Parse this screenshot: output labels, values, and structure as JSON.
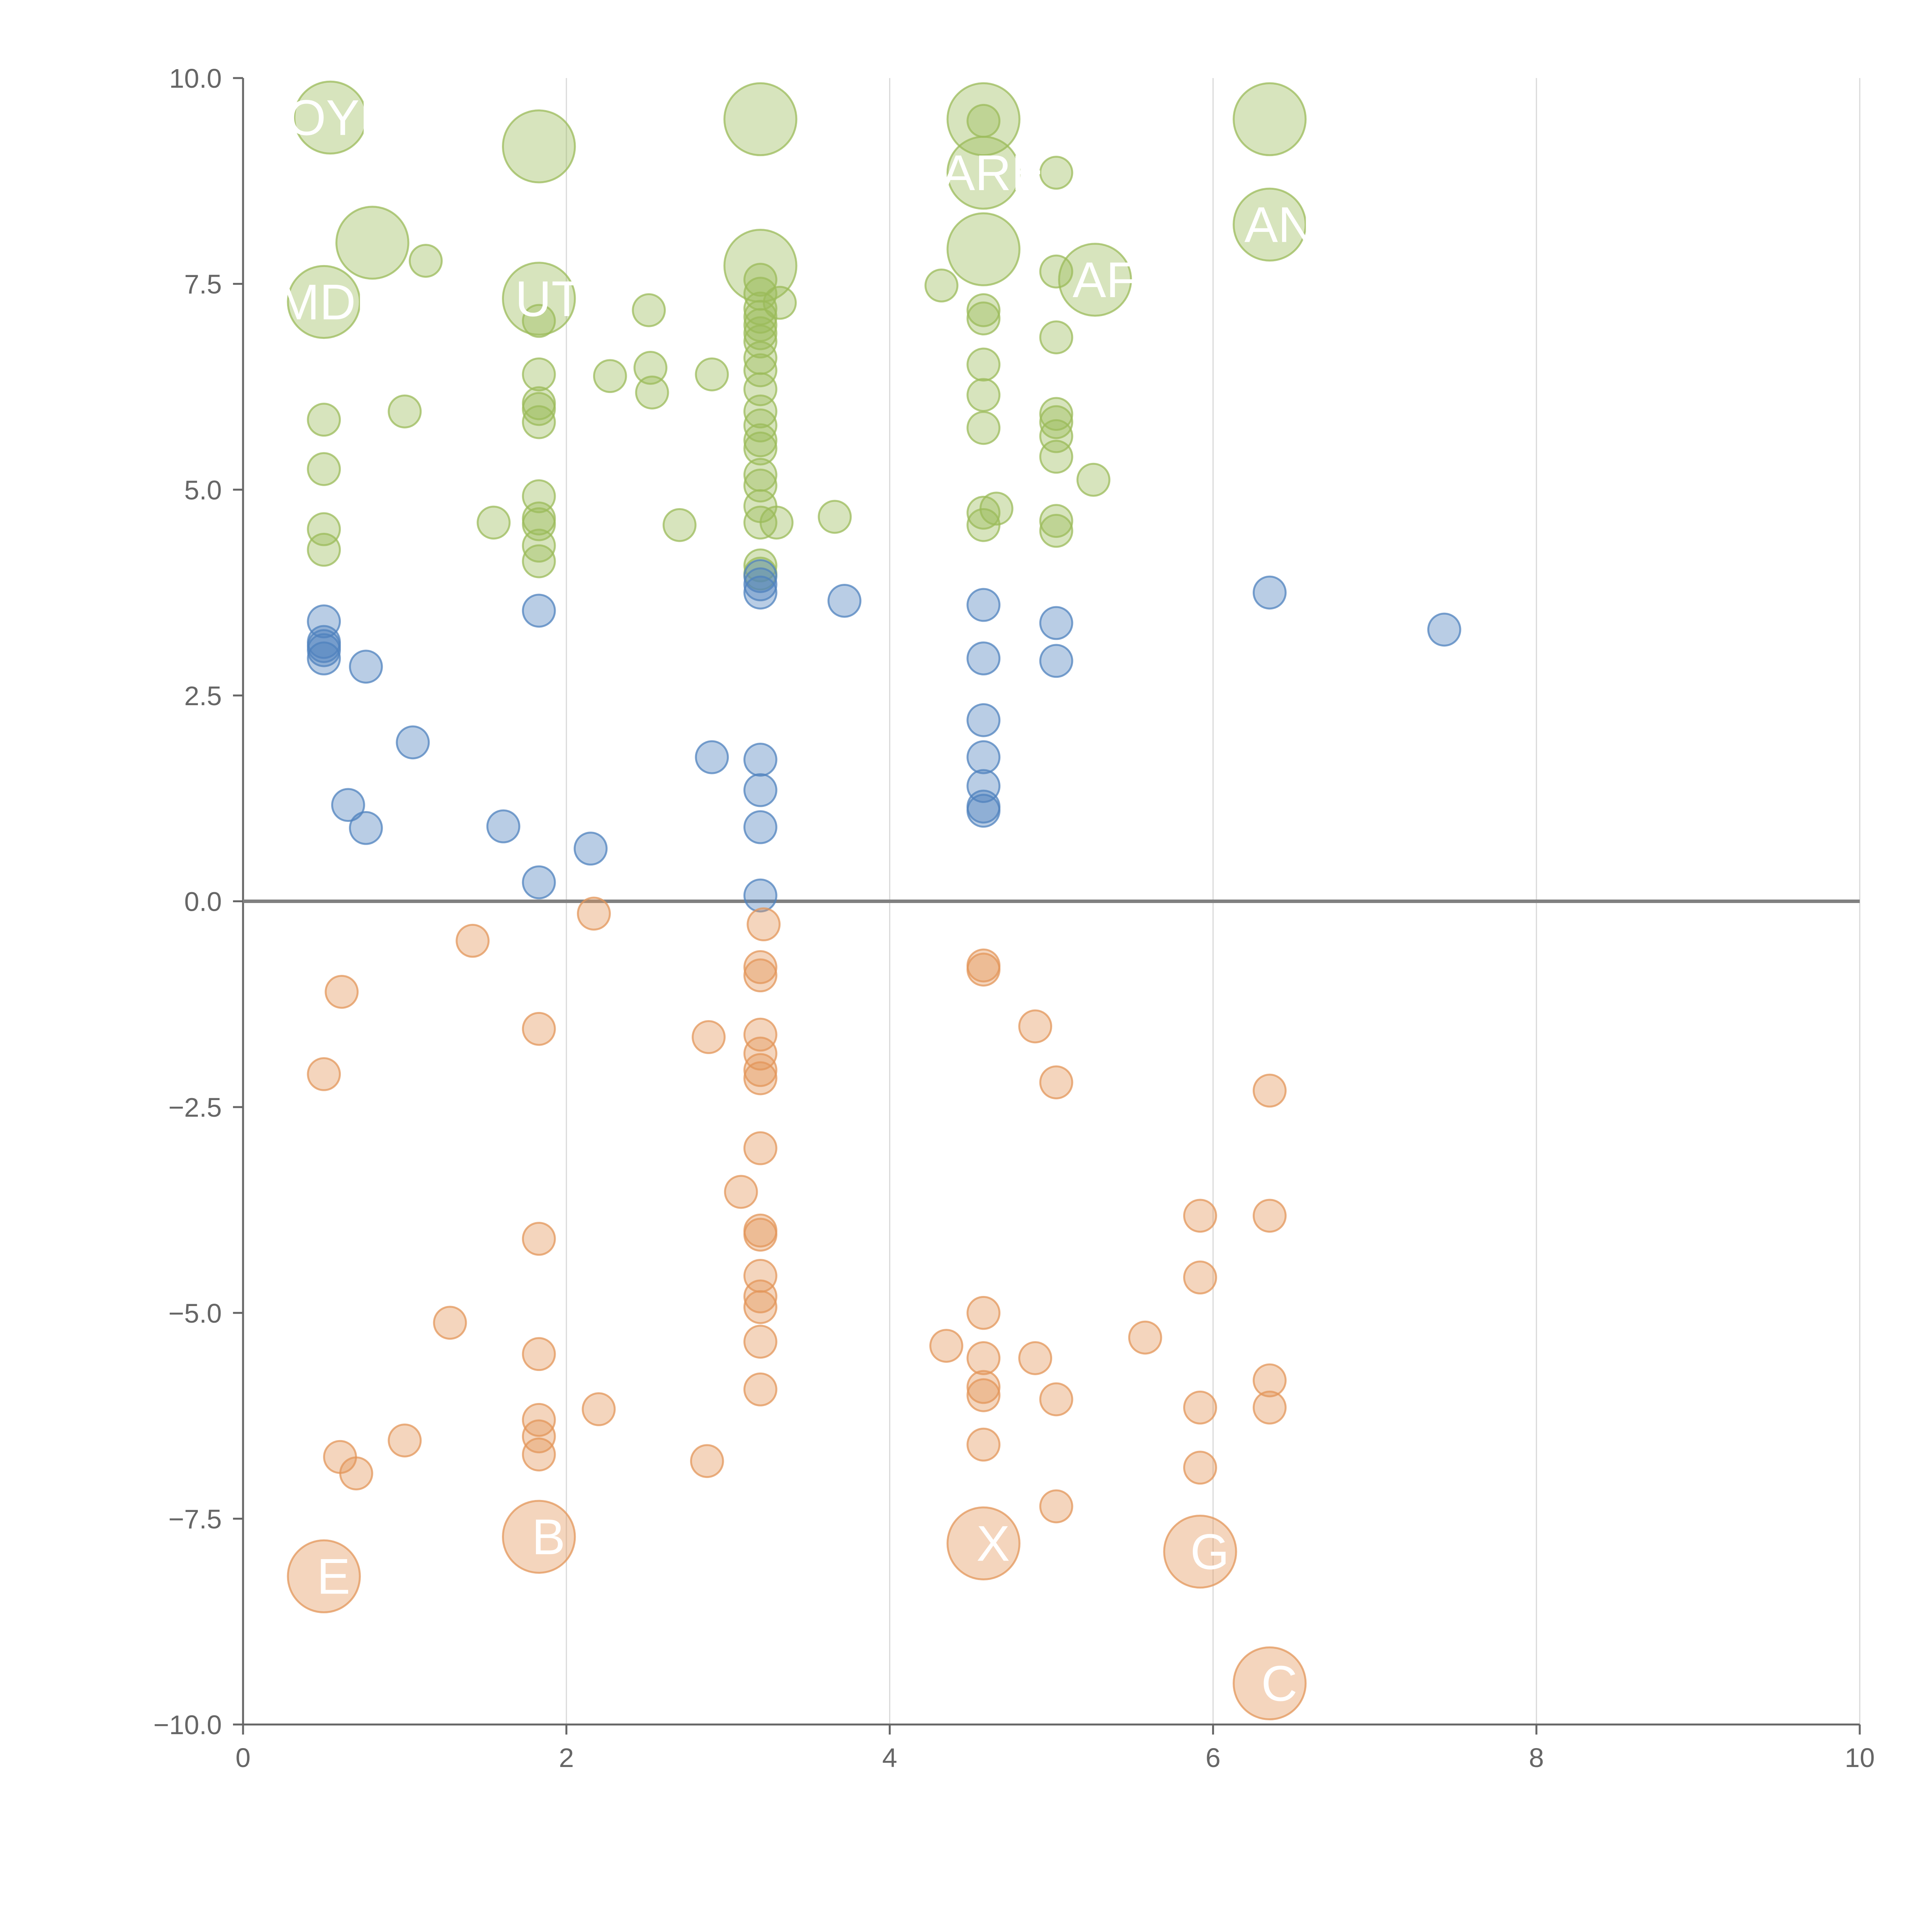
{
  "chart_data": {
    "type": "scatter",
    "title": "",
    "xlabel": "",
    "ylabel": "",
    "xlim": [
      0,
      10
    ],
    "ylim": [
      -10,
      10
    ],
    "x_ticks": [
      "0",
      "2",
      "4",
      "6",
      "8",
      "10"
    ],
    "y_ticks": [
      "10.0",
      "7.5",
      "5.0",
      "2.5",
      "0.0",
      "−2.5",
      "−5.0",
      "−7.5",
      "−10.0"
    ],
    "x_tick_values": [
      0,
      2,
      4,
      6,
      8,
      10
    ],
    "y_tick_values": [
      10,
      7.5,
      5,
      2.5,
      0,
      -2.5,
      -5,
      -7.5,
      -10
    ],
    "grid": "vertical",
    "reference_line_y": 0,
    "colors": {
      "positive_high": "#9bbb59",
      "positive_low": "#4f81bd",
      "negative": "#e3955a",
      "axis": "#666666",
      "grid": "#d9d9d9",
      "zero_line": "#808080"
    },
    "series": [
      {
        "name": "positive-high",
        "color": "#9bbb59",
        "points": [
          [
            0.5,
            5.85,
            20
          ],
          [
            0.5,
            5.25,
            20
          ],
          [
            0.5,
            4.52,
            20
          ],
          [
            0.5,
            4.27,
            20
          ],
          [
            1.0,
            5.95,
            20
          ],
          [
            1.13,
            7.78,
            20
          ],
          [
            1.55,
            4.6,
            20
          ],
          [
            1.83,
            6.4,
            20
          ],
          [
            1.83,
            6.05,
            20
          ],
          [
            1.83,
            5.98,
            20
          ],
          [
            1.83,
            5.82,
            20
          ],
          [
            1.83,
            4.92,
            20
          ],
          [
            1.83,
            4.65,
            20
          ],
          [
            1.83,
            4.58,
            20
          ],
          [
            1.83,
            4.32,
            20
          ],
          [
            1.83,
            4.13,
            20
          ],
          [
            1.83,
            7.05,
            20
          ],
          [
            2.27,
            6.38,
            20
          ],
          [
            2.51,
            7.18,
            20
          ],
          [
            2.52,
            6.48,
            20
          ],
          [
            2.53,
            6.18,
            20
          ],
          [
            2.7,
            4.57,
            20
          ],
          [
            2.9,
            6.4,
            20
          ],
          [
            3.2,
            7.55,
            20
          ],
          [
            3.2,
            7.38,
            20
          ],
          [
            3.2,
            7.2,
            20
          ],
          [
            3.2,
            7.1,
            20
          ],
          [
            3.2,
            7.0,
            20
          ],
          [
            3.2,
            6.9,
            20
          ],
          [
            3.2,
            6.8,
            20
          ],
          [
            3.2,
            6.6,
            20
          ],
          [
            3.2,
            6.45,
            20
          ],
          [
            3.2,
            6.22,
            20
          ],
          [
            3.2,
            5.95,
            20
          ],
          [
            3.2,
            5.78,
            20
          ],
          [
            3.2,
            5.6,
            20
          ],
          [
            3.2,
            5.5,
            20
          ],
          [
            3.2,
            5.18,
            20
          ],
          [
            3.2,
            5.05,
            20
          ],
          [
            3.2,
            4.8,
            20
          ],
          [
            3.2,
            4.6,
            20
          ],
          [
            3.2,
            4.08,
            20
          ],
          [
            3.2,
            3.98,
            20
          ],
          [
            3.32,
            7.27,
            20
          ],
          [
            3.3,
            4.6,
            20
          ],
          [
            3.66,
            4.67,
            20
          ],
          [
            4.32,
            7.48,
            20
          ],
          [
            4.58,
            9.48,
            20
          ],
          [
            4.58,
            7.18,
            20
          ],
          [
            4.58,
            7.08,
            20
          ],
          [
            4.58,
            6.52,
            20
          ],
          [
            4.58,
            6.15,
            20
          ],
          [
            4.58,
            5.75,
            20
          ],
          [
            4.58,
            4.72,
            20
          ],
          [
            4.58,
            4.57,
            20
          ],
          [
            4.66,
            4.77,
            20
          ],
          [
            5.03,
            8.85,
            20
          ],
          [
            5.03,
            7.65,
            20
          ],
          [
            5.03,
            6.85,
            20
          ],
          [
            5.03,
            5.92,
            20
          ],
          [
            5.03,
            5.82,
            20
          ],
          [
            5.03,
            5.65,
            20
          ],
          [
            5.03,
            5.4,
            20
          ],
          [
            5.03,
            4.62,
            20
          ],
          [
            5.03,
            4.5,
            20
          ],
          [
            5.26,
            5.12,
            20
          ],
          [
            0.54,
            9.52,
            45,
            "OYE"
          ],
          [
            0.5,
            7.28,
            45,
            "MDE"
          ],
          [
            0.8,
            8.0,
            45,
            ""
          ],
          [
            1.83,
            9.17,
            45,
            ""
          ],
          [
            1.83,
            7.32,
            45,
            "UT"
          ],
          [
            3.2,
            9.5,
            45,
            ""
          ],
          [
            3.2,
            7.72,
            45,
            ""
          ],
          [
            4.58,
            9.5,
            45,
            ""
          ],
          [
            4.58,
            8.85,
            45,
            "ARE"
          ],
          [
            4.58,
            7.92,
            45,
            ""
          ],
          [
            5.27,
            7.55,
            45,
            "AF"
          ],
          [
            6.35,
            9.5,
            45,
            ""
          ],
          [
            6.35,
            8.22,
            45,
            "AN"
          ]
        ]
      },
      {
        "name": "positive-low",
        "color": "#4f81bd",
        "points": [
          [
            0.5,
            3.4,
            20
          ],
          [
            0.5,
            3.15,
            20
          ],
          [
            0.5,
            3.1,
            20
          ],
          [
            0.5,
            3.05,
            20
          ],
          [
            0.5,
            2.95,
            20
          ],
          [
            0.76,
            2.85,
            20
          ],
          [
            1.05,
            1.93,
            20
          ],
          [
            0.65,
            1.17,
            20
          ],
          [
            0.76,
            0.89,
            20
          ],
          [
            1.61,
            0.91,
            20
          ],
          [
            1.83,
            3.53,
            20
          ],
          [
            1.83,
            0.23,
            20
          ],
          [
            2.15,
            0.64,
            20
          ],
          [
            2.9,
            1.75,
            20
          ],
          [
            3.2,
            3.95,
            20
          ],
          [
            3.2,
            3.85,
            20
          ],
          [
            3.2,
            3.75,
            20
          ],
          [
            3.2,
            1.72,
            20
          ],
          [
            3.2,
            1.35,
            20
          ],
          [
            3.2,
            0.9,
            20
          ],
          [
            3.2,
            0.07,
            20
          ],
          [
            3.72,
            3.65,
            20
          ],
          [
            4.58,
            3.6,
            20
          ],
          [
            4.58,
            2.95,
            20
          ],
          [
            4.58,
            2.2,
            20
          ],
          [
            4.58,
            1.75,
            20
          ],
          [
            4.58,
            1.4,
            20
          ],
          [
            4.58,
            1.15,
            20
          ],
          [
            4.58,
            1.1,
            20
          ],
          [
            5.03,
            3.38,
            20
          ],
          [
            5.03,
            2.92,
            20
          ],
          [
            6.35,
            3.75,
            20
          ],
          [
            7.43,
            3.3,
            20
          ]
        ]
      },
      {
        "name": "negative",
        "color": "#e3955a",
        "points": [
          [
            0.61,
            -1.1,
            20
          ],
          [
            0.5,
            -2.1,
            20
          ],
          [
            1.42,
            -0.48,
            20
          ],
          [
            2.17,
            -0.15,
            20
          ],
          [
            1.83,
            -1.55,
            20
          ],
          [
            1.83,
            -4.1,
            20
          ],
          [
            1.28,
            -5.12,
            20
          ],
          [
            1.83,
            -5.5,
            20
          ],
          [
            2.2,
            -6.17,
            20
          ],
          [
            1.83,
            -6.3,
            20
          ],
          [
            1.83,
            -6.5,
            20
          ],
          [
            1.83,
            -6.72,
            20
          ],
          [
            1.0,
            -6.55,
            20
          ],
          [
            0.6,
            -6.75,
            20
          ],
          [
            0.7,
            -6.95,
            20
          ],
          [
            2.88,
            -1.65,
            20
          ],
          [
            2.87,
            -6.8,
            20
          ],
          [
            3.22,
            -0.28,
            20
          ],
          [
            3.2,
            -0.8,
            20
          ],
          [
            3.2,
            -0.9,
            20
          ],
          [
            3.2,
            -1.62,
            20
          ],
          [
            3.2,
            -1.85,
            20
          ],
          [
            3.2,
            -2.05,
            20
          ],
          [
            3.2,
            -2.15,
            20
          ],
          [
            3.2,
            -3.0,
            20
          ],
          [
            3.08,
            -3.53,
            20
          ],
          [
            3.2,
            -4.0,
            20
          ],
          [
            3.2,
            -4.05,
            20
          ],
          [
            3.2,
            -4.55,
            20
          ],
          [
            3.2,
            -4.8,
            20
          ],
          [
            3.2,
            -4.93,
            20
          ],
          [
            3.2,
            -5.35,
            20
          ],
          [
            3.2,
            -5.93,
            20
          ],
          [
            4.58,
            -0.78,
            20
          ],
          [
            4.58,
            -0.83,
            20
          ],
          [
            4.9,
            -1.52,
            20
          ],
          [
            5.03,
            -2.2,
            20
          ],
          [
            4.58,
            -5.0,
            20
          ],
          [
            4.35,
            -5.4,
            20
          ],
          [
            4.58,
            -5.55,
            20
          ],
          [
            4.9,
            -5.55,
            20
          ],
          [
            4.58,
            -5.9,
            20
          ],
          [
            4.58,
            -6.0,
            20
          ],
          [
            5.03,
            -6.05,
            20
          ],
          [
            4.58,
            -6.6,
            20
          ],
          [
            5.03,
            -7.35,
            20
          ],
          [
            5.58,
            -5.3,
            20
          ],
          [
            5.92,
            -3.82,
            20
          ],
          [
            5.92,
            -4.57,
            20
          ],
          [
            5.92,
            -6.15,
            20
          ],
          [
            5.92,
            -6.88,
            20
          ],
          [
            6.35,
            -2.3,
            20
          ],
          [
            6.35,
            -3.82,
            20
          ],
          [
            6.35,
            -5.82,
            20
          ],
          [
            6.35,
            -6.15,
            20
          ],
          [
            0.5,
            -8.2,
            45,
            "E"
          ],
          [
            1.83,
            -7.72,
            45,
            "B"
          ],
          [
            4.58,
            -7.8,
            45,
            "X"
          ],
          [
            5.92,
            -7.9,
            45,
            "G"
          ],
          [
            6.35,
            -9.5,
            45,
            "C"
          ]
        ]
      }
    ]
  }
}
